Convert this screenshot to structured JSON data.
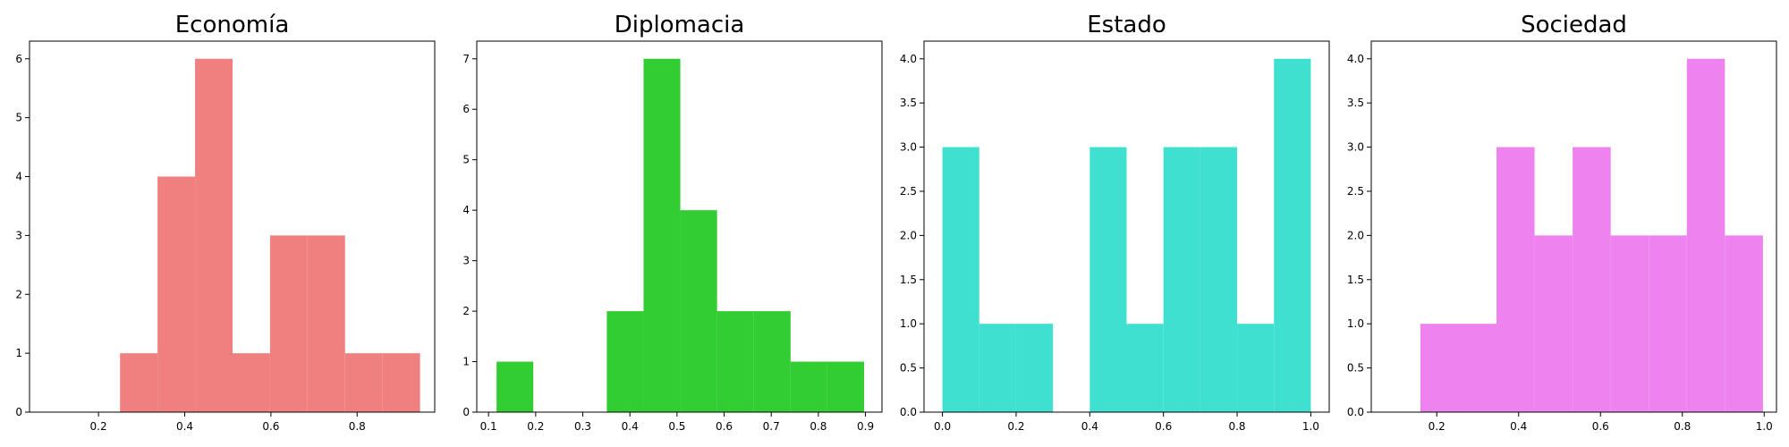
{
  "chart_data": [
    {
      "type": "bar",
      "title": "Economía",
      "color": "#f08080",
      "xlim": [
        0.04,
        0.98
      ],
      "ylim": [
        0,
        6.3
      ],
      "xticks": [
        0.2,
        0.4,
        0.6,
        0.8
      ],
      "xtick_labels": [
        "0.2",
        "0.4",
        "0.6",
        "0.8"
      ],
      "yticks": [
        0,
        1,
        2,
        3,
        4,
        5,
        6
      ],
      "ytick_labels": [
        "0",
        "1",
        "2",
        "3",
        "4",
        "5",
        "6"
      ],
      "bins": [
        {
          "x0": 0.25,
          "x1": 0.337,
          "count": 1
        },
        {
          "x0": 0.337,
          "x1": 0.424,
          "count": 4
        },
        {
          "x0": 0.424,
          "x1": 0.511,
          "count": 6
        },
        {
          "x0": 0.511,
          "x1": 0.598,
          "count": 1
        },
        {
          "x0": 0.598,
          "x1": 0.685,
          "count": 3
        },
        {
          "x0": 0.685,
          "x1": 0.772,
          "count": 3
        },
        {
          "x0": 0.772,
          "x1": 0.859,
          "count": 1
        },
        {
          "x0": 0.859,
          "x1": 0.946,
          "count": 1
        }
      ]
    },
    {
      "type": "bar",
      "title": "Diplomacia",
      "color": "#32cd32",
      "xlim": [
        0.075,
        0.935
      ],
      "ylim": [
        0,
        7.35
      ],
      "xticks": [
        0.1,
        0.2,
        0.3,
        0.4,
        0.5,
        0.6,
        0.7,
        0.8,
        0.9
      ],
      "xtick_labels": [
        "0.1",
        "0.2",
        "0.3",
        "0.4",
        "0.5",
        "0.6",
        "0.7",
        "0.8",
        "0.9"
      ],
      "yticks": [
        0,
        1,
        2,
        3,
        4,
        5,
        6,
        7
      ],
      "ytick_labels": [
        "0",
        "1",
        "2",
        "3",
        "4",
        "5",
        "6",
        "7"
      ],
      "bins": [
        {
          "x0": 0.117,
          "x1": 0.195,
          "count": 1
        },
        {
          "x0": 0.351,
          "x1": 0.429,
          "count": 2
        },
        {
          "x0": 0.429,
          "x1": 0.507,
          "count": 7
        },
        {
          "x0": 0.507,
          "x1": 0.585,
          "count": 4
        },
        {
          "x0": 0.585,
          "x1": 0.663,
          "count": 2
        },
        {
          "x0": 0.663,
          "x1": 0.741,
          "count": 2
        },
        {
          "x0": 0.741,
          "x1": 0.819,
          "count": 1
        },
        {
          "x0": 0.819,
          "x1": 0.897,
          "count": 1
        }
      ]
    },
    {
      "type": "bar",
      "title": "Estado",
      "color": "#40e0d0",
      "xlim": [
        -0.05,
        1.05
      ],
      "ylim": [
        0,
        4.2
      ],
      "xticks": [
        0.0,
        0.2,
        0.4,
        0.6,
        0.8,
        1.0
      ],
      "xtick_labels": [
        "0.0",
        "0.2",
        "0.4",
        "0.6",
        "0.8",
        "1.0"
      ],
      "yticks": [
        0,
        0.5,
        1,
        1.5,
        2,
        2.5,
        3,
        3.5,
        4
      ],
      "ytick_labels": [
        "0.0",
        "0.5",
        "1.0",
        "1.5",
        "2.0",
        "2.5",
        "3.0",
        "3.5",
        "4.0"
      ],
      "bins": [
        {
          "x0": 0.0,
          "x1": 0.1,
          "count": 3
        },
        {
          "x0": 0.1,
          "x1": 0.2,
          "count": 1
        },
        {
          "x0": 0.2,
          "x1": 0.3,
          "count": 1
        },
        {
          "x0": 0.4,
          "x1": 0.5,
          "count": 3
        },
        {
          "x0": 0.5,
          "x1": 0.6,
          "count": 1
        },
        {
          "x0": 0.6,
          "x1": 0.7,
          "count": 3
        },
        {
          "x0": 0.7,
          "x1": 0.8,
          "count": 3
        },
        {
          "x0": 0.8,
          "x1": 0.9,
          "count": 1
        },
        {
          "x0": 0.9,
          "x1": 1.0,
          "count": 4
        }
      ]
    },
    {
      "type": "bar",
      "title": "Sociedad",
      "color": "#ee82ee",
      "xlim": [
        0.04,
        1.03
      ],
      "ylim": [
        0,
        4.2
      ],
      "xticks": [
        0.2,
        0.4,
        0.6,
        0.8,
        1.0
      ],
      "xtick_labels": [
        "0.2",
        "0.4",
        "0.6",
        "0.8",
        "1.0"
      ],
      "yticks": [
        0,
        0.5,
        1,
        1.5,
        2,
        2.5,
        3,
        3.5,
        4
      ],
      "ytick_labels": [
        "0.0",
        "0.5",
        "1.0",
        "1.5",
        "2.0",
        "2.5",
        "3.0",
        "3.5",
        "4.0"
      ],
      "bins": [
        {
          "x0": 0.16,
          "x1": 0.253,
          "count": 1
        },
        {
          "x0": 0.253,
          "x1": 0.346,
          "count": 1
        },
        {
          "x0": 0.346,
          "x1": 0.439,
          "count": 3
        },
        {
          "x0": 0.439,
          "x1": 0.532,
          "count": 2
        },
        {
          "x0": 0.532,
          "x1": 0.625,
          "count": 3
        },
        {
          "x0": 0.625,
          "x1": 0.718,
          "count": 2
        },
        {
          "x0": 0.718,
          "x1": 0.811,
          "count": 2
        },
        {
          "x0": 0.811,
          "x1": 0.904,
          "count": 4
        },
        {
          "x0": 0.904,
          "x1": 0.997,
          "count": 2
        }
      ]
    }
  ]
}
